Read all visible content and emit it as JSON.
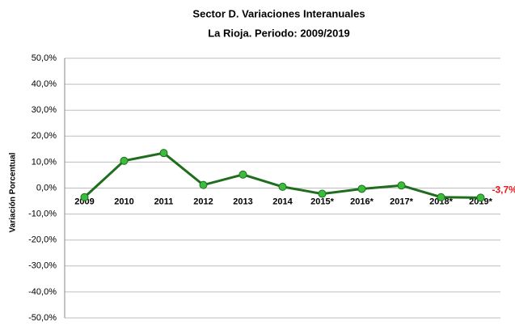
{
  "chart_data": {
    "type": "line",
    "title": "Sector D. Variaciones Interanuales",
    "subtitle": "La Rioja. Periodo: 2009/2019",
    "y_label": "Variación Porcentual",
    "categories": [
      "2009",
      "2010",
      "2011",
      "2012",
      "2013",
      "2014",
      "2015*",
      "2016*",
      "2017*",
      "2018*",
      "2019*"
    ],
    "series": [
      {
        "name": null,
        "color": "#1e6e1e",
        "marker_color": "#3cbc3c",
        "values": [
          -3.5,
          10.5,
          13.5,
          1.2,
          5.2,
          0.5,
          -2.2,
          -0.3,
          1.0,
          -3.5,
          -3.7
        ],
        "value_labels": [
          null,
          null,
          null,
          null,
          null,
          null,
          null,
          null,
          null,
          null,
          "-3,7%"
        ]
      }
    ],
    "ylim": [
      -50,
      50
    ],
    "yticks": [
      {
        "value": -50,
        "label": "-50,0%"
      },
      {
        "value": -40,
        "label": "-40,0%"
      },
      {
        "value": -30,
        "label": "-30,0%"
      },
      {
        "value": -20,
        "label": "-20,0%"
      },
      {
        "value": -10,
        "label": "-10,0%"
      },
      {
        "value": 0,
        "label": "0,0%"
      },
      {
        "value": 10,
        "label": "10,0%"
      },
      {
        "value": 20,
        "label": "20,0%"
      },
      {
        "value": 30,
        "label": "30,0%"
      },
      {
        "value": 40,
        "label": "40,0%"
      },
      {
        "value": 50,
        "label": "50,0%"
      }
    ],
    "grid": true
  }
}
